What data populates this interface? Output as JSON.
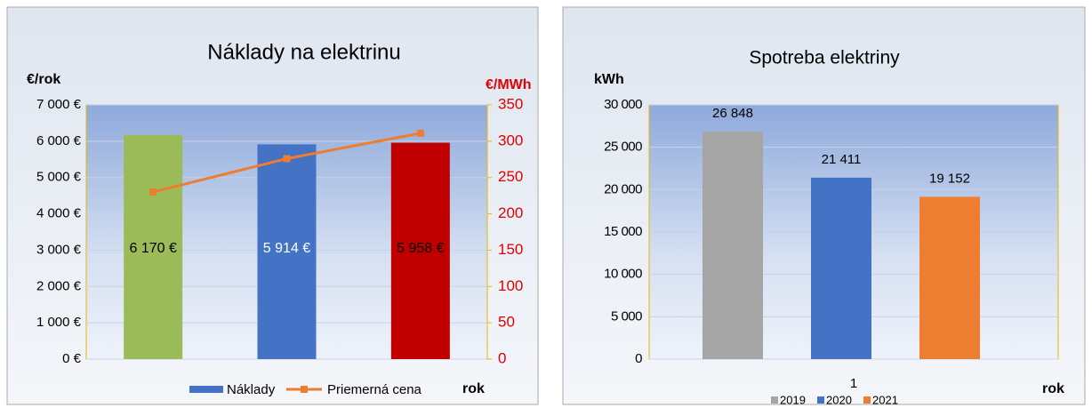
{
  "chart_data": [
    {
      "type": "bar",
      "title": "Náklady na elektrinu",
      "y_label": "€/rok",
      "y2_label": "€/MWh",
      "x_label": "rok",
      "categories": [
        null,
        null,
        null
      ],
      "ylim": [
        0,
        7000
      ],
      "yticks": [
        {
          "value": 0,
          "label": "0 €"
        },
        {
          "value": 1000,
          "label": "1 000 €"
        },
        {
          "value": 2000,
          "label": "2 000 €"
        },
        {
          "value": 3000,
          "label": "3 000 €"
        },
        {
          "value": 4000,
          "label": "4 000 €"
        },
        {
          "value": 5000,
          "label": "5 000 €"
        },
        {
          "value": 6000,
          "label": "6 000 €"
        },
        {
          "value": 7000,
          "label": "7 000 €"
        }
      ],
      "y2lim": [
        0,
        350
      ],
      "y2ticks": [
        0,
        50,
        100,
        150,
        200,
        250,
        300,
        350
      ],
      "series": [
        {
          "name": "Náklady",
          "type": "bar",
          "color": "#4472c4",
          "colors": [
            "#9bbb59",
            "#4472c4",
            "#c00000"
          ],
          "values": [
            6170,
            5914,
            5958
          ],
          "value_labels": [
            "6 170 €",
            "5 914 €",
            "5 958 €"
          ]
        },
        {
          "name": "Priemerná cena",
          "type": "line",
          "axis": "y2",
          "color": "#ed7d31",
          "values": [
            230,
            276,
            311
          ]
        }
      ]
    },
    {
      "type": "bar",
      "title": "Spotreba elektriny",
      "y_label": "kWh",
      "x_label": "rok",
      "categories": [
        "1"
      ],
      "ylim": [
        0,
        30000
      ],
      "yticks": [
        0,
        {
          "value": 5000,
          "label": "5 000"
        },
        {
          "value": 10000,
          "label": "10 000"
        },
        {
          "value": 15000,
          "label": "15 000"
        },
        {
          "value": 20000,
          "label": "20 000"
        },
        {
          "value": 25000,
          "label": "25 000"
        },
        {
          "value": 30000,
          "label": "30 000"
        }
      ],
      "series": [
        {
          "name": "2019",
          "color": "#a5a5a5",
          "values": [
            26848
          ],
          "value_labels": [
            "26 848"
          ]
        },
        {
          "name": "2020",
          "color": "#4472c4",
          "values": [
            21411
          ],
          "value_labels": [
            "21 411"
          ]
        },
        {
          "name": "2021",
          "color": "#ed7d31",
          "values": [
            19152
          ],
          "value_labels": [
            "19 152"
          ]
        }
      ]
    }
  ]
}
